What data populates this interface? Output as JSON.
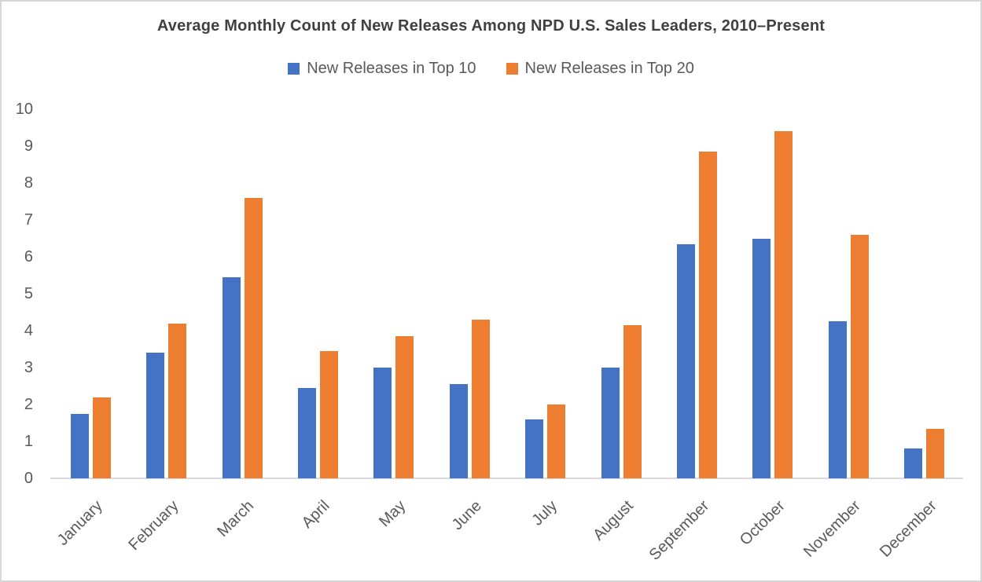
{
  "chart_data": {
    "type": "bar",
    "title": "Average Monthly Count of New Releases Among NPD U.S. Sales Leaders, 2010–Present",
    "categories": [
      "January",
      "February",
      "March",
      "April",
      "May",
      "June",
      "July",
      "August",
      "September",
      "October",
      "November",
      "December"
    ],
    "series": [
      {
        "name": "New Releases in Top 10",
        "color": "#4472C4",
        "values": [
          1.75,
          3.4,
          5.45,
          2.45,
          3.0,
          2.55,
          1.6,
          3.0,
          6.35,
          6.5,
          4.25,
          0.8
        ]
      },
      {
        "name": "New Releases in Top 20",
        "color": "#ED7D31",
        "values": [
          2.2,
          4.2,
          7.6,
          3.45,
          3.85,
          4.3,
          2.0,
          4.15,
          8.85,
          9.4,
          6.6,
          1.35
        ]
      }
    ],
    "xlabel": "",
    "ylabel": "",
    "ylim": [
      0,
      10
    ],
    "yticks": [
      0,
      1,
      2,
      3,
      4,
      5,
      6,
      7,
      8,
      9,
      10
    ],
    "grid": false,
    "legend_position": "top",
    "bar_orientation": "vertical",
    "x_label_rotation_deg": 45,
    "colors": {
      "title_text": "#404040",
      "axis_tick_text": "#595959",
      "legend_text": "#595959",
      "axis_line": "#d9d9d9",
      "background": "#ffffff",
      "border": "#d6d6d6"
    }
  }
}
